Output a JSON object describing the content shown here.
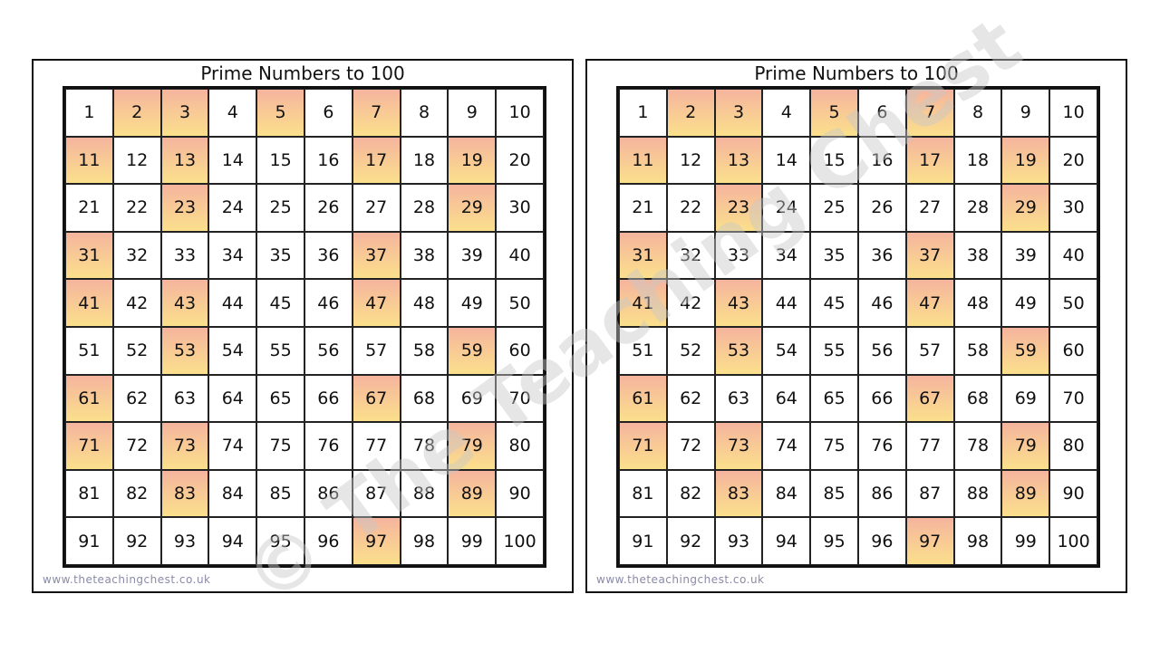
{
  "cards": [
    {
      "title": "Prime Numbers to 100",
      "footer": "www.theteachingchest.co.uk",
      "cells": [
        1,
        {
          "n": 2,
          "prime": true
        },
        {
          "n": 3,
          "prime": true
        },
        4,
        {
          "n": 5,
          "prime": true
        },
        6,
        {
          "n": 7,
          "prime": true
        },
        8,
        9,
        10,
        {
          "n": 11,
          "prime": true
        },
        12,
        {
          "n": 13,
          "prime": true
        },
        14,
        15,
        16,
        {
          "n": 17,
          "prime": true
        },
        18,
        {
          "n": 19,
          "prime": true
        },
        20,
        21,
        22,
        {
          "n": 23,
          "prime": true
        },
        24,
        25,
        26,
        27,
        28,
        {
          "n": 29,
          "prime": true
        },
        30,
        {
          "n": 31,
          "prime": true
        },
        32,
        33,
        34,
        35,
        36,
        {
          "n": 37,
          "prime": true
        },
        38,
        39,
        40,
        {
          "n": 41,
          "prime": true
        },
        42,
        {
          "n": 43,
          "prime": true
        },
        44,
        45,
        46,
        {
          "n": 47,
          "prime": true
        },
        48,
        49,
        50,
        51,
        52,
        {
          "n": 53,
          "prime": true
        },
        54,
        55,
        56,
        57,
        58,
        {
          "n": 59,
          "prime": true
        },
        60,
        {
          "n": 61,
          "prime": true
        },
        62,
        63,
        64,
        65,
        66,
        {
          "n": 67,
          "prime": true
        },
        68,
        69,
        70,
        {
          "n": 71,
          "prime": true
        },
        72,
        {
          "n": 73,
          "prime": true
        },
        74,
        75,
        76,
        77,
        78,
        {
          "n": 79,
          "prime": true
        },
        80,
        81,
        82,
        {
          "n": 83,
          "prime": true
        },
        84,
        85,
        86,
        87,
        88,
        {
          "n": 89,
          "prime": true
        },
        90,
        91,
        92,
        93,
        94,
        95,
        96,
        {
          "n": 97,
          "prime": true
        },
        98,
        99,
        100
      ]
    },
    {
      "title": "Prime Numbers to 100",
      "footer": "www.theteachingchest.co.uk",
      "cells": [
        1,
        {
          "n": 2,
          "prime": true
        },
        {
          "n": 3,
          "prime": true
        },
        4,
        {
          "n": 5,
          "prime": true
        },
        6,
        {
          "n": 7,
          "prime": true
        },
        8,
        9,
        10,
        {
          "n": 11,
          "prime": true
        },
        12,
        {
          "n": 13,
          "prime": true
        },
        14,
        15,
        16,
        {
          "n": 17,
          "prime": true
        },
        18,
        {
          "n": 19,
          "prime": true
        },
        20,
        21,
        22,
        {
          "n": 23,
          "prime": true
        },
        24,
        25,
        26,
        27,
        28,
        {
          "n": 29,
          "prime": true
        },
        30,
        {
          "n": 31,
          "prime": true
        },
        32,
        33,
        34,
        35,
        36,
        {
          "n": 37,
          "prime": true
        },
        38,
        39,
        40,
        {
          "n": 41,
          "prime": true
        },
        42,
        {
          "n": 43,
          "prime": true
        },
        44,
        45,
        46,
        {
          "n": 47,
          "prime": true
        },
        48,
        49,
        50,
        51,
        52,
        {
          "n": 53,
          "prime": true
        },
        54,
        55,
        56,
        57,
        58,
        {
          "n": 59,
          "prime": true
        },
        60,
        {
          "n": 61,
          "prime": true
        },
        62,
        63,
        64,
        65,
        66,
        {
          "n": 67,
          "prime": true
        },
        68,
        69,
        70,
        {
          "n": 71,
          "prime": true
        },
        72,
        {
          "n": 73,
          "prime": true
        },
        74,
        75,
        76,
        77,
        78,
        {
          "n": 79,
          "prime": true
        },
        80,
        81,
        82,
        {
          "n": 83,
          "prime": true
        },
        84,
        85,
        86,
        87,
        88,
        {
          "n": 89,
          "prime": true
        },
        90,
        91,
        92,
        93,
        94,
        95,
        96,
        {
          "n": 97,
          "prime": true
        },
        98,
        99,
        100
      ]
    }
  ],
  "watermark": "© The Teaching Chest"
}
